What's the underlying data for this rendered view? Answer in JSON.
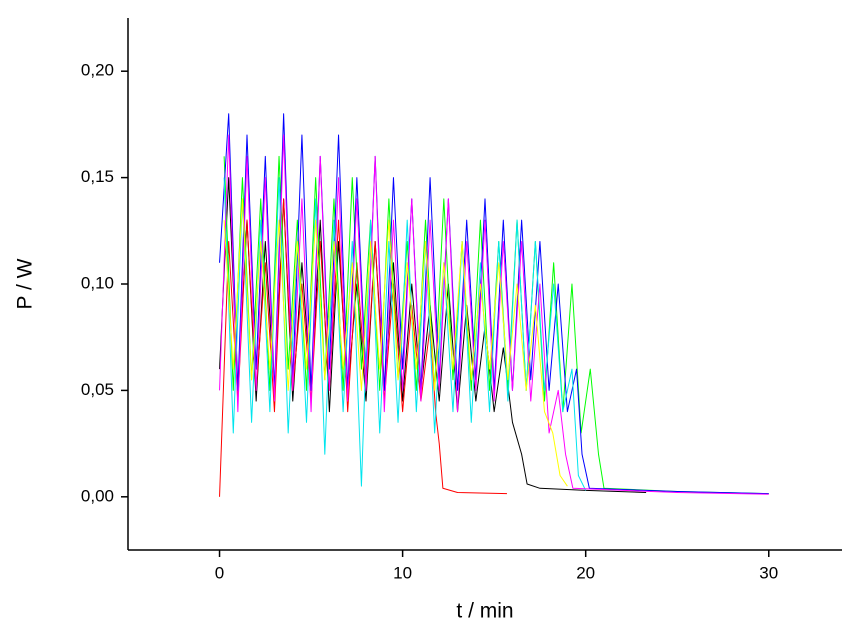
{
  "chart_data": {
    "type": "line",
    "xlabel": "t / min",
    "ylabel": "P / W",
    "xlim": [
      -5,
      34
    ],
    "ylim": [
      -0.025,
      0.225
    ],
    "xticks": [
      0,
      10,
      20,
      30
    ],
    "yticks": [
      {
        "value": 0,
        "label": "0,00"
      },
      {
        "value": 0.05,
        "label": "0,05"
      },
      {
        "value": 0.1,
        "label": "0,10"
      },
      {
        "value": 0.15,
        "label": "0,15"
      },
      {
        "value": 0.2,
        "label": "0,20"
      }
    ],
    "series": [
      {
        "color": "#000000",
        "x": [
          0,
          0.5,
          1,
          1.5,
          2,
          2.5,
          3,
          3.5,
          4,
          4.5,
          5,
          5.5,
          6,
          6.5,
          7,
          7.5,
          8,
          8.5,
          9,
          9.5,
          10,
          10.5,
          11,
          11.5,
          12,
          12.5,
          13,
          13.5,
          14,
          14.5,
          15,
          15.5,
          16,
          16.5,
          16.8,
          17.5,
          20,
          23.3
        ],
        "values": [
          0.06,
          0.15,
          0.05,
          0.13,
          0.045,
          0.12,
          0.05,
          0.14,
          0.045,
          0.11,
          0.05,
          0.13,
          0.04,
          0.12,
          0.05,
          0.1,
          0.045,
          0.12,
          0.05,
          0.11,
          0.045,
          0.1,
          0.05,
          0.09,
          0.045,
          0.1,
          0.04,
          0.09,
          0.045,
          0.08,
          0.04,
          0.07,
          0.035,
          0.02,
          0.006,
          0.004,
          0.003,
          0.002
        ]
      },
      {
        "color": "#ff0000",
        "x": [
          0,
          0.5,
          1,
          1.5,
          2,
          2.5,
          3,
          3.5,
          4,
          4.5,
          5,
          5.5,
          6,
          6.5,
          7,
          7.5,
          8,
          8.5,
          9,
          9.5,
          10,
          10.5,
          11,
          11.5,
          11.8,
          12,
          12.2,
          13,
          15.7
        ],
        "values": [
          0,
          0.12,
          0.045,
          0.13,
          0.05,
          0.11,
          0.04,
          0.14,
          0.05,
          0.1,
          0.045,
          0.12,
          0.05,
          0.13,
          0.04,
          0.11,
          0.05,
          0.12,
          0.045,
          0.1,
          0.04,
          0.09,
          0.045,
          0.08,
          0.04,
          0.025,
          0.004,
          0.002,
          0.0015
        ]
      },
      {
        "color": "#00ff00",
        "x": [
          0.25,
          0.75,
          1.25,
          1.75,
          2.25,
          2.75,
          3.25,
          3.75,
          4.25,
          4.75,
          5.25,
          5.75,
          6.25,
          6.75,
          7.25,
          7.75,
          8.25,
          8.75,
          9.25,
          9.75,
          10.25,
          10.75,
          11.25,
          11.75,
          12.25,
          12.75,
          13.25,
          13.75,
          14.25,
          14.75,
          15.25,
          15.75,
          16.25,
          16.75,
          17.25,
          17.75,
          18.25,
          18.75,
          19.25,
          19.75,
          20.25,
          20.7,
          21,
          25,
          30
        ],
        "values": [
          0.16,
          0.05,
          0.15,
          0.055,
          0.14,
          0.05,
          0.16,
          0.06,
          0.13,
          0.05,
          0.15,
          0.055,
          0.14,
          0.05,
          0.15,
          0.06,
          0.13,
          0.05,
          0.14,
          0.055,
          0.12,
          0.05,
          0.13,
          0.05,
          0.14,
          0.055,
          0.12,
          0.05,
          0.13,
          0.05,
          0.12,
          0.05,
          0.13,
          0.05,
          0.12,
          0.045,
          0.11,
          0.04,
          0.1,
          0.03,
          0.06,
          0.02,
          0.004,
          0.0025,
          0.0015
        ]
      },
      {
        "color": "#0000ff",
        "x": [
          0,
          0.5,
          1,
          1.5,
          2,
          2.5,
          3,
          3.5,
          4,
          4.5,
          5,
          5.5,
          6,
          6.5,
          7,
          7.5,
          8,
          8.5,
          9,
          9.5,
          10,
          10.5,
          11,
          11.5,
          12,
          12.5,
          13,
          13.5,
          14,
          14.5,
          15,
          15.5,
          16,
          16.5,
          17,
          17.5,
          18,
          18.5,
          19,
          19.5,
          19.8,
          20.2,
          25,
          30
        ],
        "values": [
          0.11,
          0.18,
          0.05,
          0.17,
          0.06,
          0.16,
          0.05,
          0.18,
          0.055,
          0.17,
          0.05,
          0.16,
          0.06,
          0.17,
          0.05,
          0.15,
          0.055,
          0.16,
          0.05,
          0.15,
          0.06,
          0.14,
          0.05,
          0.15,
          0.055,
          0.14,
          0.05,
          0.13,
          0.055,
          0.14,
          0.05,
          0.13,
          0.05,
          0.13,
          0.055,
          0.12,
          0.05,
          0.1,
          0.04,
          0.06,
          0.02,
          0.004,
          0.0025,
          0.0015
        ]
      },
      {
        "color": "#00e5ee",
        "x": [
          0.25,
          0.75,
          1.25,
          1.75,
          2.25,
          2.75,
          3.25,
          3.75,
          4.25,
          4.75,
          5.25,
          5.75,
          6.25,
          6.75,
          7.25,
          7.75,
          8.25,
          8.75,
          9.25,
          9.75,
          10.25,
          10.75,
          11.25,
          11.75,
          12.25,
          12.75,
          13.25,
          13.75,
          14.25,
          14.75,
          15.25,
          15.75,
          16.25,
          16.75,
          17.25,
          17.75,
          18.25,
          18.75,
          19.25,
          19.6,
          20
        ],
        "values": [
          0.15,
          0.03,
          0.14,
          0.035,
          0.13,
          0.04,
          0.15,
          0.03,
          0.12,
          0.035,
          0.14,
          0.02,
          0.13,
          0.04,
          0.12,
          0.005,
          0.13,
          0.03,
          0.12,
          0.035,
          0.13,
          0.04,
          0.12,
          0.03,
          0.11,
          0.04,
          0.12,
          0.035,
          0.11,
          0.04,
          0.12,
          0.045,
          0.13,
          0.05,
          0.12,
          0.05,
          0.1,
          0.04,
          0.06,
          0.01,
          0.003
        ]
      },
      {
        "color": "#ff00ff",
        "x": [
          0,
          0.5,
          1,
          1.5,
          2,
          2.5,
          3,
          3.5,
          4,
          4.5,
          5,
          5.5,
          6,
          6.5,
          7,
          7.5,
          8,
          8.5,
          9,
          9.5,
          10,
          10.5,
          11,
          11.5,
          12,
          12.5,
          13,
          13.5,
          14,
          14.5,
          15,
          15.5,
          16,
          16.5,
          17,
          17.5,
          18,
          18.5,
          18.9,
          19.3,
          25,
          30
        ],
        "values": [
          0.05,
          0.17,
          0.04,
          0.16,
          0.05,
          0.15,
          0.045,
          0.17,
          0.05,
          0.14,
          0.04,
          0.16,
          0.05,
          0.15,
          0.045,
          0.14,
          0.05,
          0.16,
          0.04,
          0.13,
          0.05,
          0.14,
          0.045,
          0.13,
          0.05,
          0.14,
          0.04,
          0.12,
          0.05,
          0.13,
          0.045,
          0.12,
          0.05,
          0.12,
          0.045,
          0.1,
          0.03,
          0.05,
          0.02,
          0.004,
          0.002,
          0.0012
        ]
      },
      {
        "color": "#ffff00",
        "x": [
          0.25,
          0.75,
          1.25,
          1.75,
          2.25,
          2.75,
          3.25,
          3.75,
          4.25,
          4.75,
          5.25,
          5.75,
          6.25,
          6.75,
          7.25,
          7.75,
          8.25,
          8.75,
          9.25,
          9.75,
          10.25,
          10.75,
          11.25,
          11.75,
          12.25,
          12.75,
          13.25,
          13.75,
          14.25,
          14.75,
          15.25,
          15.75,
          16.25,
          16.75,
          17.25,
          17.75,
          18.2,
          18.6,
          19
        ],
        "values": [
          0.13,
          0.06,
          0.14,
          0.055,
          0.12,
          0.06,
          0.13,
          0.05,
          0.12,
          0.06,
          0.13,
          0.055,
          0.12,
          0.06,
          0.11,
          0.05,
          0.12,
          0.06,
          0.13,
          0.055,
          0.11,
          0.06,
          0.12,
          0.05,
          0.11,
          0.06,
          0.12,
          0.055,
          0.1,
          0.06,
          0.11,
          0.055,
          0.1,
          0.05,
          0.09,
          0.04,
          0.03,
          0.01,
          0.005
        ]
      }
    ]
  }
}
